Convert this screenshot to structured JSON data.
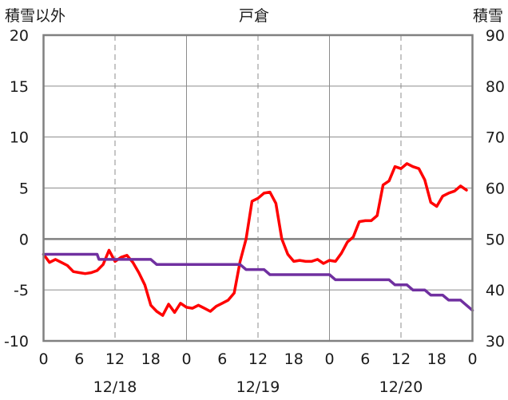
{
  "chart_data": {
    "type": "line",
    "title": "戸倉",
    "left_axis_label": "積雪以外",
    "right_axis_label": "積雪",
    "y_left": {
      "min": -10,
      "max": 20,
      "ticks": [
        20,
        15,
        10,
        5,
        0,
        -5,
        -10
      ]
    },
    "y_right": {
      "min": 30,
      "max": 90,
      "ticks": [
        90,
        80,
        70,
        60,
        50,
        40,
        30
      ]
    },
    "x_hours": {
      "min": 0,
      "max": 72,
      "tick_hours": [
        0,
        6,
        12,
        18,
        24,
        30,
        36,
        42,
        48,
        54,
        60,
        66,
        72
      ],
      "tick_labels": [
        "0",
        "6",
        "12",
        "18",
        "0",
        "6",
        "12",
        "18",
        "0",
        "6",
        "12",
        "18",
        "0"
      ]
    },
    "dates": [
      {
        "label": "12/18",
        "at_hour": 12
      },
      {
        "label": "12/19",
        "at_hour": 36
      },
      {
        "label": "12/20",
        "at_hour": 60
      }
    ],
    "grid": true,
    "series": [
      {
        "axis": "left",
        "color": "#ff0000",
        "points": [
          [
            0,
            -1.5
          ],
          [
            1,
            -2.3
          ],
          [
            2,
            -2.0
          ],
          [
            3,
            -2.3
          ],
          [
            4,
            -2.6
          ],
          [
            5,
            -3.2
          ],
          [
            6,
            -3.3
          ],
          [
            7,
            -3.4
          ],
          [
            8,
            -3.3
          ],
          [
            9,
            -3.1
          ],
          [
            10,
            -2.5
          ],
          [
            11,
            -1.1
          ],
          [
            12,
            -2.2
          ],
          [
            13,
            -1.8
          ],
          [
            14,
            -1.6
          ],
          [
            15,
            -2.3
          ],
          [
            16,
            -3.3
          ],
          [
            17,
            -4.5
          ],
          [
            18,
            -6.5
          ],
          [
            19,
            -7.1
          ],
          [
            20,
            -7.5
          ],
          [
            21,
            -6.4
          ],
          [
            22,
            -7.2
          ],
          [
            23,
            -6.3
          ],
          [
            24,
            -6.7
          ],
          [
            25,
            -6.8
          ],
          [
            26,
            -6.5
          ],
          [
            27,
            -6.8
          ],
          [
            28,
            -7.1
          ],
          [
            29,
            -6.6
          ],
          [
            30,
            -6.3
          ],
          [
            31,
            -6.0
          ],
          [
            32,
            -5.3
          ],
          [
            33,
            -2.2
          ],
          [
            34,
            0.0
          ],
          [
            35,
            3.7
          ],
          [
            36,
            4.0
          ],
          [
            37,
            4.5
          ],
          [
            38,
            4.6
          ],
          [
            39,
            3.5
          ],
          [
            40,
            0.0
          ],
          [
            41,
            -1.5
          ],
          [
            42,
            -2.2
          ],
          [
            43,
            -2.1
          ],
          [
            44,
            -2.2
          ],
          [
            45,
            -2.2
          ],
          [
            46,
            -2.0
          ],
          [
            47,
            -2.4
          ],
          [
            48,
            -2.1
          ],
          [
            49,
            -2.2
          ],
          [
            50,
            -1.4
          ],
          [
            51,
            -0.3
          ],
          [
            52,
            0.2
          ],
          [
            53,
            1.7
          ],
          [
            54,
            1.8
          ],
          [
            55,
            1.8
          ],
          [
            56,
            2.3
          ],
          [
            57,
            5.3
          ],
          [
            58,
            5.7
          ],
          [
            59,
            7.1
          ],
          [
            60,
            6.9
          ],
          [
            61,
            7.4
          ],
          [
            62,
            7.1
          ],
          [
            63,
            6.9
          ],
          [
            64,
            5.8
          ],
          [
            65,
            3.6
          ],
          [
            66,
            3.2
          ],
          [
            67,
            4.2
          ],
          [
            68,
            4.5
          ],
          [
            69,
            4.7
          ],
          [
            70,
            5.2
          ],
          [
            71,
            4.8
          ]
        ]
      },
      {
        "axis": "right",
        "color": "#7030a0",
        "points": [
          [
            0,
            47
          ],
          [
            9,
            47
          ],
          [
            9.3,
            46
          ],
          [
            18,
            46
          ],
          [
            19,
            45
          ],
          [
            33,
            45
          ],
          [
            34,
            44
          ],
          [
            37,
            44
          ],
          [
            38,
            43
          ],
          [
            48,
            43
          ],
          [
            49,
            42
          ],
          [
            58,
            42
          ],
          [
            59,
            41
          ],
          [
            61,
            41
          ],
          [
            62,
            40
          ],
          [
            64,
            40
          ],
          [
            65,
            39
          ],
          [
            67,
            39
          ],
          [
            68,
            38
          ],
          [
            70,
            38
          ],
          [
            71,
            37
          ],
          [
            72,
            36
          ]
        ]
      }
    ]
  }
}
